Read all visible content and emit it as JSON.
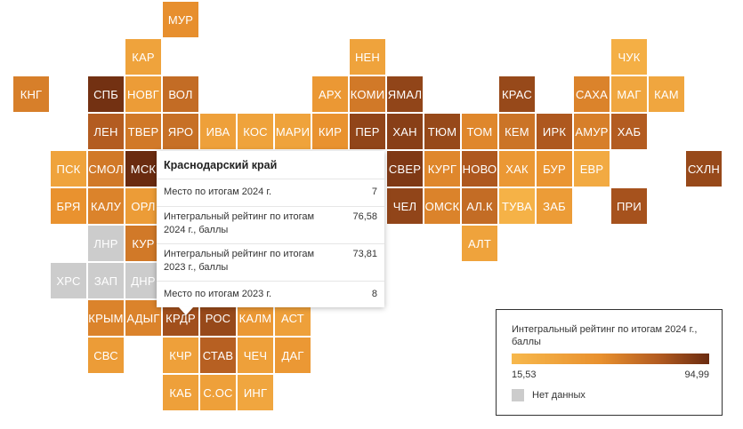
{
  "map": {
    "regions": [
      {
        "abbr": "МУР",
        "value": 44,
        "col": 4,
        "row": 0
      },
      {
        "abbr": "КАР",
        "value": 30,
        "col": 3,
        "row": 1
      },
      {
        "abbr": "НЕН",
        "value": 30,
        "col": 9,
        "row": 1
      },
      {
        "abbr": "ЧУК",
        "value": 22,
        "col": 16,
        "row": 1
      },
      {
        "abbr": "КНГ",
        "value": 52,
        "col": 0,
        "row": 2
      },
      {
        "abbr": "СПБ",
        "value": 92,
        "col": 2,
        "row": 2
      },
      {
        "abbr": "НОВГ",
        "value": 35,
        "col": 3,
        "row": 2
      },
      {
        "abbr": "ВОЛ",
        "value": 62,
        "col": 4,
        "row": 2
      },
      {
        "abbr": "АРХ",
        "value": 38,
        "col": 8,
        "row": 2
      },
      {
        "abbr": "КОМИ",
        "value": 55,
        "col": 9,
        "row": 2
      },
      {
        "abbr": "ЯМАЛ",
        "value": 82,
        "col": 10,
        "row": 2
      },
      {
        "abbr": "КРАС",
        "value": 80,
        "col": 13,
        "row": 2
      },
      {
        "abbr": "САХА",
        "value": 50,
        "col": 15,
        "row": 2
      },
      {
        "abbr": "МАГ",
        "value": 28,
        "col": 16,
        "row": 2
      },
      {
        "abbr": "КАМ",
        "value": 28,
        "col": 17,
        "row": 2
      },
      {
        "abbr": "ЛЕН",
        "value": 70,
        "col": 2,
        "row": 3
      },
      {
        "abbr": "ТВЕР",
        "value": 55,
        "col": 3,
        "row": 3
      },
      {
        "abbr": "ЯРО",
        "value": 60,
        "col": 4,
        "row": 3
      },
      {
        "abbr": "ИВА",
        "value": 32,
        "col": 5,
        "row": 3
      },
      {
        "abbr": "КОС",
        "value": 30,
        "col": 6,
        "row": 3
      },
      {
        "abbr": "МАРИ",
        "value": 30,
        "col": 7,
        "row": 3
      },
      {
        "abbr": "КИР",
        "value": 42,
        "col": 8,
        "row": 3
      },
      {
        "abbr": "ПЕР",
        "value": 82,
        "col": 9,
        "row": 3
      },
      {
        "abbr": "ХАН",
        "value": 85,
        "col": 10,
        "row": 3
      },
      {
        "abbr": "ТЮМ",
        "value": 80,
        "col": 11,
        "row": 3
      },
      {
        "abbr": "ТОМ",
        "value": 48,
        "col": 12,
        "row": 3
      },
      {
        "abbr": "КЕМ",
        "value": 58,
        "col": 13,
        "row": 3
      },
      {
        "abbr": "ИРК",
        "value": 72,
        "col": 14,
        "row": 3
      },
      {
        "abbr": "АМУР",
        "value": 52,
        "col": 15,
        "row": 3
      },
      {
        "abbr": "ХАБ",
        "value": 70,
        "col": 16,
        "row": 3
      },
      {
        "abbr": "ПСК",
        "value": 30,
        "col": 1,
        "row": 4
      },
      {
        "abbr": "СМОЛ",
        "value": 55,
        "col": 2,
        "row": 4
      },
      {
        "abbr": "МСК",
        "value": 95,
        "col": 3,
        "row": 4
      },
      {
        "abbr": "СВЕР",
        "value": 88,
        "col": 10,
        "row": 4
      },
      {
        "abbr": "КУРГ",
        "value": 48,
        "col": 11,
        "row": 4
      },
      {
        "abbr": "НОВО",
        "value": 72,
        "col": 12,
        "row": 4
      },
      {
        "abbr": "ХАК",
        "value": 38,
        "col": 13,
        "row": 4
      },
      {
        "abbr": "БУР",
        "value": 40,
        "col": 14,
        "row": 4
      },
      {
        "abbr": "ЕВР",
        "value": 25,
        "col": 15,
        "row": 4
      },
      {
        "abbr": "СХЛН",
        "value": 80,
        "col": 18,
        "row": 4
      },
      {
        "abbr": "БРЯ",
        "value": 42,
        "col": 1,
        "row": 5
      },
      {
        "abbr": "КАЛУ",
        "value": 50,
        "col": 2,
        "row": 5
      },
      {
        "abbr": "ОРЛ",
        "value": 35,
        "col": 3,
        "row": 5
      },
      {
        "abbr": "ЧЕЛ",
        "value": 82,
        "col": 10,
        "row": 5
      },
      {
        "abbr": "ОМСК",
        "value": 50,
        "col": 11,
        "row": 5
      },
      {
        "abbr": "АЛ.К",
        "value": 62,
        "col": 12,
        "row": 5
      },
      {
        "abbr": "ТУВА",
        "value": 20,
        "col": 13,
        "row": 5
      },
      {
        "abbr": "ЗАБ",
        "value": 35,
        "col": 14,
        "row": 5
      },
      {
        "abbr": "ПРИ",
        "value": 75,
        "col": 16,
        "row": 5
      },
      {
        "abbr": "ЛНР",
        "value": null,
        "col": 2,
        "row": 6
      },
      {
        "abbr": "КУР",
        "value": 55,
        "col": 3,
        "row": 6
      },
      {
        "abbr": "АЛТ",
        "value": 30,
        "col": 12,
        "row": 6
      },
      {
        "abbr": "ХРС",
        "value": null,
        "col": 1,
        "row": 7
      },
      {
        "abbr": "ЗАП",
        "value": null,
        "col": 2,
        "row": 7
      },
      {
        "abbr": "ДНР",
        "value": null,
        "col": 3,
        "row": 7
      },
      {
        "abbr": "КРЫМ",
        "value": 50,
        "col": 2,
        "row": 8
      },
      {
        "abbr": "АДЫГ",
        "value": 50,
        "col": 3,
        "row": 8
      },
      {
        "abbr": "КРДР",
        "value": 76.58,
        "col": 4,
        "row": 8
      },
      {
        "abbr": "РОС",
        "value": 80,
        "col": 5,
        "row": 8
      },
      {
        "abbr": "КАЛМ",
        "value": 38,
        "col": 6,
        "row": 8
      },
      {
        "abbr": "АСТ",
        "value": 32,
        "col": 7,
        "row": 8
      },
      {
        "abbr": "СВС",
        "value": 35,
        "col": 2,
        "row": 9
      },
      {
        "abbr": "КЧР",
        "value": 32,
        "col": 4,
        "row": 9
      },
      {
        "abbr": "СТАВ",
        "value": 68,
        "col": 5,
        "row": 9
      },
      {
        "abbr": "ЧЕЧ",
        "value": 32,
        "col": 6,
        "row": 9
      },
      {
        "abbr": "ДАГ",
        "value": 38,
        "col": 7,
        "row": 9
      },
      {
        "abbr": "КАБ",
        "value": 32,
        "col": 4,
        "row": 10
      },
      {
        "abbr": "С.ОС",
        "value": 32,
        "col": 5,
        "row": 10
      },
      {
        "abbr": "ИНГ",
        "value": 28,
        "col": 6,
        "row": 10
      }
    ]
  },
  "tooltip": {
    "title": "Краснодарский край",
    "rows": [
      {
        "label": "Место по итогам 2024 г.",
        "value": "7"
      },
      {
        "label": "Интегральный рейтинг по итогам 2024 г., баллы",
        "value": "76,58"
      },
      {
        "label": "Интегральный рейтинг по итогам 2023 г., баллы",
        "value": "73,81"
      },
      {
        "label": "Место по итогам 2023 г.",
        "value": "8"
      }
    ]
  },
  "legend": {
    "title": "Интегральный рейтинг по итогам 2024 г., баллы",
    "min": "15,53",
    "max": "94,99",
    "no_data_label": "Нет данных",
    "min_value": 15.53,
    "max_value": 94.99
  },
  "colors": {
    "low": "#f7b84c",
    "mid1": "#e8902e",
    "mid2": "#b15a20",
    "high": "#6a2b10",
    "no_data": "#cccccc"
  }
}
